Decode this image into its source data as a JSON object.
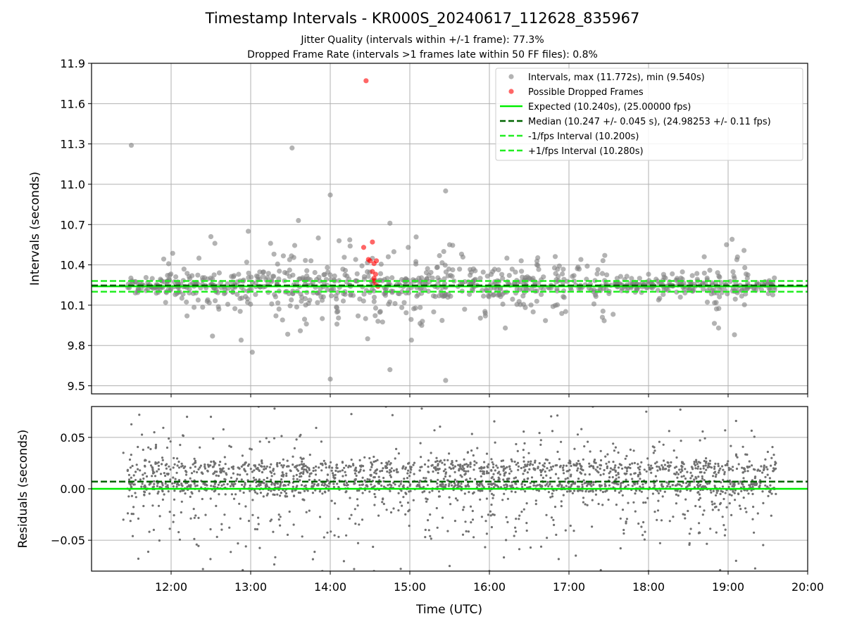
{
  "chart_data": [
    {
      "type": "scatter",
      "title": "Timestamp Intervals - KR000S_20240617_112628_835967",
      "subtitle_lines": [
        "Jitter Quality (intervals within +/-1 frame): 77.3%",
        "Dropped Frame Rate (intervals >1 frames late within 50 FF files): 0.8%"
      ],
      "xlabel": "",
      "ylabel": "Intervals (seconds)",
      "x_unit": "hours (UTC)",
      "xlim": [
        11.0,
        20.0
      ],
      "ylim": [
        9.44,
        11.9
      ],
      "yticks": [
        9.5,
        9.8,
        10.1,
        10.4,
        10.7,
        11.0,
        11.3,
        11.6,
        11.9
      ],
      "ytick_labels": [
        "9.5",
        "9.8",
        "10.1",
        "10.4",
        "10.7",
        "11.0",
        "11.3",
        "11.6",
        "11.9"
      ],
      "grid": true,
      "legend_position": "top-right",
      "series": [
        {
          "name": "Intervals, max (11.772s), min (9.540s)",
          "kind": "scatter",
          "color": "#808080",
          "points": [
            [
              11.5,
              11.29
            ],
            [
              13.52,
              11.27
            ],
            [
              14.0,
              10.92
            ],
            [
              15.45,
              10.95
            ],
            [
              14.0,
              9.55
            ],
            [
              15.45,
              9.54
            ],
            [
              14.75,
              9.62
            ],
            [
              13.02,
              9.75
            ],
            [
              15.02,
              9.84
            ],
            [
              12.88,
              9.84
            ],
            [
              14.47,
              9.85
            ],
            [
              18.88,
              9.93
            ],
            [
              19.08,
              9.88
            ],
            [
              16.2,
              9.93
            ],
            [
              17.42,
              10.01
            ],
            [
              18.77,
              10.36
            ],
            [
              18.7,
              10.46
            ],
            [
              19.05,
              10.59
            ],
            [
              18.98,
              10.55
            ],
            [
              19.08,
              10.3
            ],
            [
              12.5,
              10.61
            ],
            [
              12.97,
              10.65
            ],
            [
              13.6,
              10.73
            ],
            [
              14.75,
              10.71
            ],
            [
              15.5,
              10.55
            ],
            [
              16.22,
              10.45
            ],
            [
              17.15,
              10.44
            ],
            [
              17.45,
              10.47
            ],
            [
              12.35,
              10.45
            ],
            [
              12.55,
              10.56
            ],
            [
              13.25,
              10.56
            ],
            [
              13.85,
              10.6
            ],
            [
              14.25,
              10.54
            ],
            [
              14.98,
              10.53
            ],
            [
              15.65,
              10.48
            ],
            [
              16.4,
              10.43
            ],
            [
              17.7,
              10.29
            ],
            [
              18.0,
              10.33
            ],
            [
              18.55,
              10.32
            ],
            [
              12.95,
              10.42
            ],
            [
              15.8,
              10.37
            ],
            [
              13.4,
              9.99
            ],
            [
              13.7,
              9.96
            ],
            [
              14.6,
              9.98
            ],
            [
              15.15,
              9.95
            ],
            [
              15.95,
              10.02
            ],
            [
              12.2,
              10.02
            ],
            [
              12.52,
              9.87
            ],
            [
              13.9,
              10.0
            ],
            [
              14.35,
              10.02
            ],
            [
              15.3,
              10.05
            ],
            [
              16.55,
              10.05
            ],
            [
              12.6,
              10.07
            ],
            [
              16.8,
              10.09
            ],
            [
              18.4,
              10.16
            ],
            [
              18.85,
              10.12
            ]
          ]
        },
        {
          "name": "Possible Dropped Frames",
          "kind": "scatter",
          "color": "#ff0000",
          "points": [
            [
              14.45,
              11.77
            ],
            [
              14.42,
              10.53
            ],
            [
              14.53,
              10.57
            ],
            [
              14.48,
              10.44
            ],
            [
              14.5,
              10.43
            ],
            [
              14.58,
              10.43
            ],
            [
              14.55,
              10.41
            ],
            [
              14.53,
              10.35
            ],
            [
              14.57,
              10.33
            ],
            [
              14.55,
              10.3
            ],
            [
              14.55,
              10.28
            ],
            [
              14.57,
              10.25
            ],
            [
              14.6,
              10.24
            ]
          ]
        },
        {
          "name": "Expected (10.240s), (25.00000 fps)",
          "kind": "hline",
          "y": 10.24,
          "color": "#00ee00",
          "style": "solid"
        },
        {
          "name": "Median (10.247 +/- 0.045 s), (24.98253 +/- 0.11 fps)",
          "kind": "hline",
          "y": 10.247,
          "color": "#006400",
          "style": "dashed"
        },
        {
          "name": "-1/fps Interval (10.200s)",
          "kind": "hline",
          "y": 10.2,
          "color": "#22ee22",
          "style": "dashed"
        },
        {
          "name": "+1/fps Interval (10.280s)",
          "kind": "hline",
          "y": 10.28,
          "color": "#22ee22",
          "style": "dashed"
        }
      ],
      "cloud_note_sample_range": {
        "x": [
          11.45,
          19.6
        ],
        "y": [
          9.85,
          10.65
        ]
      }
    },
    {
      "type": "scatter",
      "xlabel": "Time (UTC)",
      "ylabel": "Residuals (seconds)",
      "xlim": [
        11.0,
        20.0
      ],
      "ylim": [
        -0.08,
        0.08
      ],
      "xticks": [
        12,
        13,
        14,
        15,
        16,
        17,
        18,
        19,
        20
      ],
      "xtick_labels": [
        "12:00",
        "13:00",
        "14:00",
        "15:00",
        "16:00",
        "17:00",
        "18:00",
        "19:00",
        "20:00"
      ],
      "yticks": [
        -0.05,
        0.0,
        0.05
      ],
      "ytick_labels": [
        "−0.05",
        "0.00",
        "0.05"
      ],
      "grid": true,
      "series": [
        {
          "name": "",
          "kind": "scatter",
          "color": "#808080",
          "points": [
            [
              11.6,
              0.072
            ],
            [
              12.2,
              0.07
            ],
            [
              12.5,
              0.07
            ],
            [
              13.1,
              0.08
            ],
            [
              13.3,
              0.078
            ],
            [
              14.7,
              0.08
            ],
            [
              15.15,
              0.078
            ],
            [
              16.0,
              0.08
            ],
            [
              17.3,
              0.08
            ],
            [
              18.4,
              0.077
            ],
            [
              19.1,
              0.066
            ],
            [
              12.4,
              -0.078
            ],
            [
              12.9,
              -0.079
            ],
            [
              13.9,
              -0.08
            ],
            [
              14.3,
              -0.078
            ],
            [
              15.5,
              -0.075
            ],
            [
              16.0,
              -0.08
            ],
            [
              17.4,
              -0.079
            ],
            [
              18.0,
              -0.08
            ],
            [
              18.9,
              -0.079
            ],
            [
              19.1,
              -0.07
            ],
            [
              14.55,
              -0.08
            ],
            [
              11.4,
              0.035
            ],
            [
              11.4,
              -0.03
            ],
            [
              19.6,
              0.025
            ],
            [
              19.6,
              -0.005
            ]
          ]
        },
        {
          "name": "",
          "kind": "hline",
          "y": 0.0,
          "color": "#00ee00",
          "style": "solid"
        },
        {
          "name": "",
          "kind": "hline",
          "y": 0.007,
          "color": "#006400",
          "style": "dashed"
        }
      ]
    }
  ]
}
